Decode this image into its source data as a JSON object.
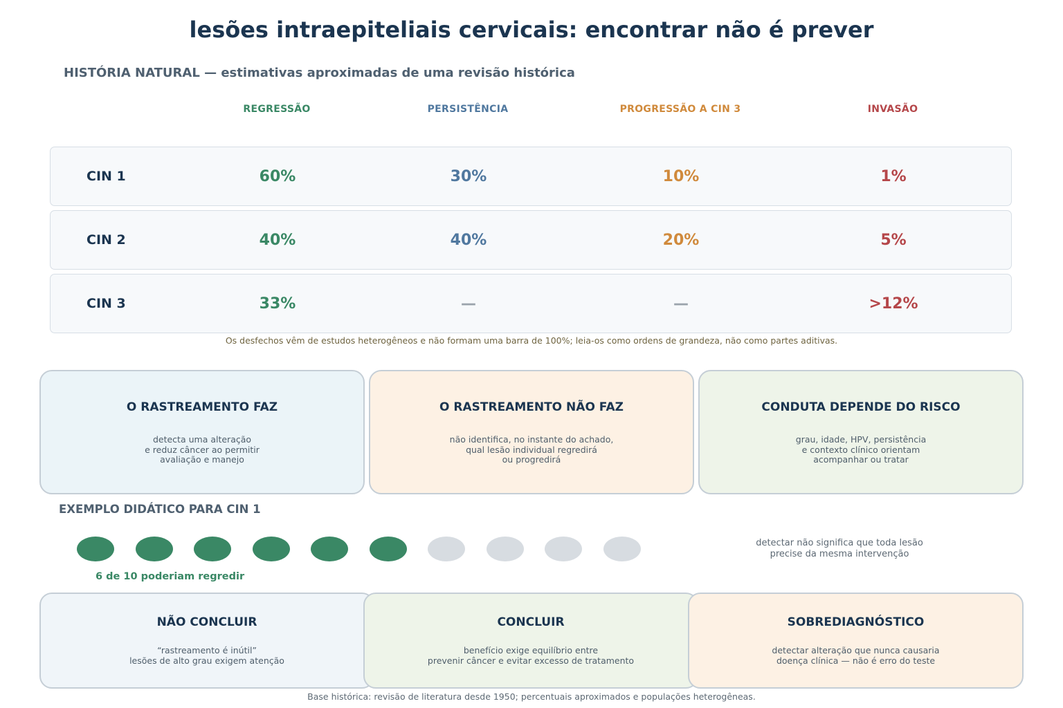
{
  "title": "lesões intraepiteliais cervicais: encontrar não é prever",
  "natural_history": {
    "heading": "HISTÓRIA NATURAL — estimativas aproximadas de uma revisão histórica",
    "columns": [
      {
        "label": "REGRESSÃO",
        "color": "#3a8865"
      },
      {
        "label": "PERSISTÊNCIA",
        "color": "#50789f"
      },
      {
        "label": "PROGRESSÃO A CIN 3",
        "color": "#d08a3c"
      },
      {
        "label": "INVASÃO",
        "color": "#b5474a"
      }
    ],
    "rows": [
      {
        "label": "CIN 1",
        "values": [
          "60%",
          "30%",
          "10%",
          "1%"
        ]
      },
      {
        "label": "CIN 2",
        "values": [
          "40%",
          "40%",
          "20%",
          "5%"
        ]
      },
      {
        "label": "CIN 3",
        "values": [
          "33%",
          "—",
          "—",
          ">12%"
        ]
      }
    ],
    "dash_color": "#9aa3ab",
    "note": "Os desfechos vêm de estudos heterogêneos e não formam uma barra de 100%; leia-os como ordens de grandeza, não como partes aditivas."
  },
  "screening_cards": [
    {
      "title": "O RASTREAMENTO FAZ",
      "text": "detecta uma alteração\ne reduz câncer ao permitir\navaliação e manejo",
      "bg": "#ebf4f8"
    },
    {
      "title": "O RASTREAMENTO NÃO FAZ",
      "text": "não identifica, no instante do achado,\nqual lesão individual regredirá\nou progredirá",
      "bg": "#fdf1e4"
    },
    {
      "title": "CONDUTA DEPENDE DO RISCO",
      "text": "grau, idade, HPV, persistência\ne contexto clínico orientam\nacompanhar ou tratar",
      "bg": "#eef4e9"
    }
  ],
  "example": {
    "heading": "EXEMPLO DIDÁTICO PARA CIN 1",
    "total": 10,
    "regress_count": 6,
    "caption": "6 de 10 poderiam regredir",
    "side_note": "detectar não significa que toda lesão\nprecise da mesma intervenção",
    "on_color": "#3a8865",
    "off_color": "#d7dce1"
  },
  "conclusion_cards": [
    {
      "title": "NÃO CONCLUIR",
      "text": "“rastreamento é inútil”\nlesões de alto grau exigem atenção",
      "bg": "#f0f5f9"
    },
    {
      "title": "CONCLUIR",
      "text": "benefício exige equilíbrio entre\nprevenir câncer e evitar excesso de tratamento",
      "bg": "#eef4e9"
    },
    {
      "title": "SOBREDIAGNÓSTICO",
      "text": "detectar alteração que nunca causaria\ndoença clínica — não é erro do teste",
      "bg": "#fdf1e4"
    }
  ],
  "footer": "Base histórica: revisão de literatura desde 1950; percentuais aproximados e populações heterogêneas."
}
